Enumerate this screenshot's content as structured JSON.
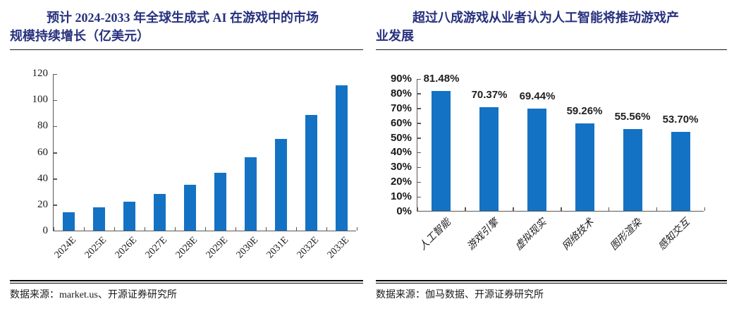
{
  "colors": {
    "bar_blue": "#1472C4",
    "title_navy": "#27317E",
    "axis_gray": "#595959"
  },
  "left_panel": {
    "title": "预计 2024-2033 年全球生成式 AI 在游戏中的市场\n规模持续增长（亿美元）",
    "source": "数据来源：market.us、开源证券研究所"
  },
  "right_panel": {
    "title": "超过八成游戏从业者认为人工智能将推动游戏产\n业发展",
    "source": "数据来源：伽马数据、开源证券研究所"
  },
  "chart_data": [
    {
      "type": "bar",
      "title": "预计 2024-2033 年全球生成式 AI 在游戏中的市场规模持续增长（亿美元）",
      "unit": "亿美元",
      "categories": [
        "2024E",
        "2025E",
        "2026E",
        "2027E",
        "2028E",
        "2029E",
        "2030E",
        "2031E",
        "2032E",
        "2033E"
      ],
      "values": [
        14,
        18,
        22,
        28,
        35,
        44,
        56,
        70,
        88,
        111
      ],
      "ylim": [
        0,
        120
      ],
      "ytick_step": 20,
      "ytick_suffix": "",
      "bar_color": "#1472C4",
      "grid": false,
      "legend": "none",
      "xlabel": "",
      "ylabel": ""
    },
    {
      "type": "bar",
      "title": "超过八成游戏从业者认为人工智能将推动游戏产业发展",
      "categories": [
        "人工智能",
        "游戏引擎",
        "虚拟现实",
        "网络技术",
        "图形渲染",
        "感知交互"
      ],
      "values": [
        81.48,
        70.37,
        69.44,
        59.26,
        55.56,
        53.7
      ],
      "data_labels": [
        "81.48%",
        "70.37%",
        "69.44%",
        "59.26%",
        "55.56%",
        "53.70%"
      ],
      "ylim": [
        0,
        90
      ],
      "ytick_step": 10,
      "ytick_suffix": "%",
      "bar_color": "#1472C4",
      "grid": false,
      "legend": "none",
      "xlabel": "",
      "ylabel": ""
    }
  ]
}
